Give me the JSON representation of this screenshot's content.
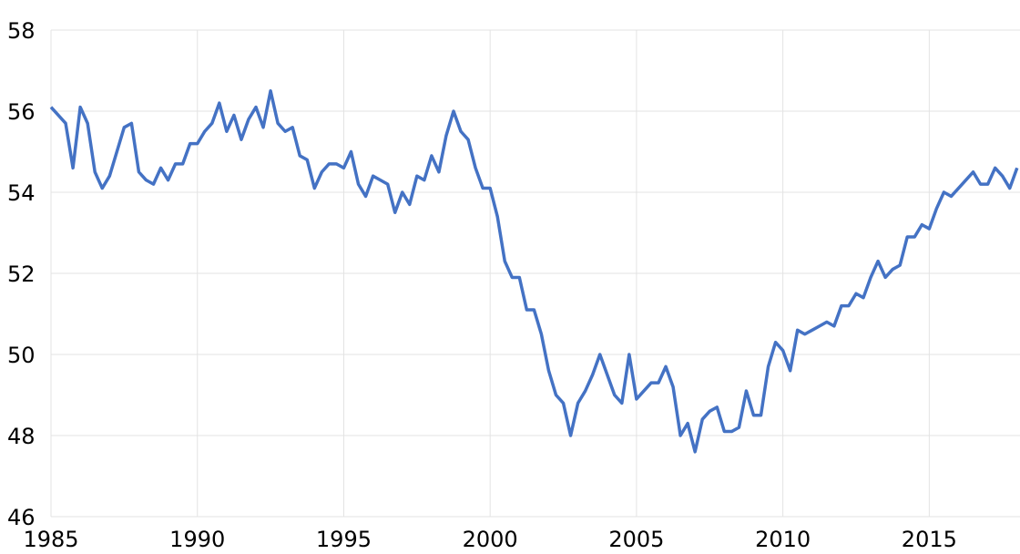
{
  "chart_data": {
    "type": "line",
    "x": [
      1985.0,
      1985.25,
      1985.5,
      1985.75,
      1986.0,
      1986.25,
      1986.5,
      1986.75,
      1987.0,
      1987.25,
      1987.5,
      1987.75,
      1988.0,
      1988.25,
      1988.5,
      1988.75,
      1989.0,
      1989.25,
      1989.5,
      1989.75,
      1990.0,
      1990.25,
      1990.5,
      1990.75,
      1991.0,
      1991.25,
      1991.5,
      1991.75,
      1992.0,
      1992.25,
      1992.5,
      1992.75,
      1993.0,
      1993.25,
      1993.5,
      1993.75,
      1994.0,
      1994.25,
      1994.5,
      1994.75,
      1995.0,
      1995.25,
      1995.5,
      1995.75,
      1996.0,
      1996.25,
      1996.5,
      1996.75,
      1997.0,
      1997.25,
      1997.5,
      1997.75,
      1998.0,
      1998.25,
      1998.5,
      1998.75,
      1999.0,
      1999.25,
      1999.5,
      1999.75,
      2000.0,
      2000.25,
      2000.5,
      2000.75,
      2001.0,
      2001.25,
      2001.5,
      2001.75,
      2002.0,
      2002.25,
      2002.5,
      2002.75,
      2003.0,
      2003.25,
      2003.5,
      2003.75,
      2004.0,
      2004.25,
      2004.5,
      2004.75,
      2005.0,
      2005.25,
      2005.5,
      2005.75,
      2006.0,
      2006.25,
      2006.5,
      2006.75,
      2007.0,
      2007.25,
      2007.5,
      2007.75,
      2008.0,
      2008.25,
      2008.5,
      2008.75,
      2009.0,
      2009.25,
      2009.5,
      2009.75,
      2010.0,
      2010.25,
      2010.5,
      2010.75,
      2011.0,
      2011.25,
      2011.5,
      2011.75,
      2012.0,
      2012.25,
      2012.5,
      2012.75,
      2013.0,
      2013.25,
      2013.5,
      2013.75,
      2014.0,
      2014.25,
      2014.5,
      2014.75,
      2015.0,
      2015.25,
      2015.5,
      2015.75,
      2016.0,
      2016.25,
      2016.5,
      2016.75,
      2017.0,
      2017.25,
      2017.5,
      2017.75,
      2018.0
    ],
    "series": [
      {
        "color": "#4472c4",
        "values": [
          56.1,
          55.9,
          55.7,
          54.6,
          56.1,
          55.7,
          54.5,
          54.1,
          54.4,
          55.0,
          55.6,
          55.7,
          54.5,
          54.3,
          54.2,
          54.6,
          54.3,
          54.7,
          54.7,
          55.2,
          55.2,
          55.5,
          55.7,
          56.2,
          55.5,
          55.9,
          55.3,
          55.8,
          56.1,
          55.6,
          56.5,
          55.7,
          55.5,
          55.6,
          54.9,
          54.8,
          54.1,
          54.5,
          54.7,
          54.7,
          54.6,
          55.0,
          54.2,
          53.9,
          54.4,
          54.3,
          54.2,
          53.5,
          54.0,
          53.7,
          54.4,
          54.3,
          54.9,
          54.5,
          55.4,
          56.0,
          55.5,
          55.3,
          54.6,
          54.1,
          54.1,
          53.4,
          52.3,
          51.9,
          51.9,
          51.1,
          51.1,
          50.5,
          49.6,
          49.0,
          48.8,
          48.0,
          48.8,
          49.1,
          49.5,
          50.0,
          49.5,
          49.0,
          48.8,
          50.0,
          48.9,
          49.1,
          49.3,
          49.3,
          49.7,
          49.2,
          48.0,
          48.3,
          47.6,
          48.4,
          48.6,
          48.7,
          48.1,
          48.1,
          48.2,
          49.1,
          48.5,
          48.5,
          49.7,
          50.3,
          50.1,
          49.6,
          50.6,
          50.5,
          50.6,
          50.7,
          50.8,
          50.7,
          51.2,
          51.2,
          51.5,
          51.4,
          51.9,
          52.3,
          51.9,
          52.1,
          52.2,
          52.9,
          52.9,
          53.2,
          53.1,
          53.6,
          54.0,
          53.9,
          54.1,
          54.3,
          54.5,
          54.2,
          54.2,
          54.6,
          54.4,
          54.1,
          54.6
        ]
      }
    ],
    "xlim": [
      1985,
      2018.1
    ],
    "ylim": [
      46,
      58
    ],
    "xticks": [
      1985,
      1990,
      1995,
      2000,
      2005,
      2010,
      2015
    ],
    "yticks": [
      46,
      48,
      50,
      52,
      54,
      56,
      58
    ],
    "grid": true
  }
}
